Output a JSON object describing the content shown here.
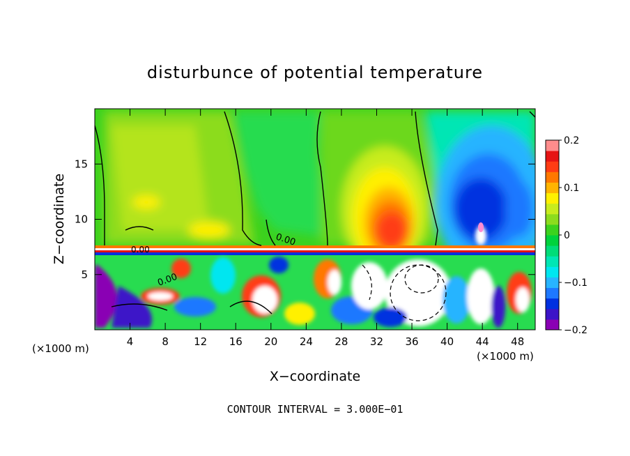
{
  "chart_data": {
    "type": "heatmap",
    "title": "disturbunce of potential temperature",
    "xlabel": "X−coordinate",
    "ylabel": "Z−coordinate",
    "x_unit_left": "(×1000 m)",
    "x_unit_right": "(×1000 m)",
    "xlim": [
      0,
      50
    ],
    "ylim": [
      0,
      20
    ],
    "x_ticks": [
      4,
      8,
      12,
      16,
      20,
      24,
      28,
      32,
      36,
      40,
      44,
      48
    ],
    "x_tick_labels": [
      "4",
      "8",
      "12",
      "16",
      "20",
      "24",
      "28",
      "32",
      "36",
      "40",
      "44",
      "48"
    ],
    "y_ticks": [
      5,
      10,
      15
    ],
    "y_tick_labels": [
      "5",
      "10",
      "15"
    ],
    "colorbar": {
      "range": [
        -0.2,
        0.2
      ],
      "ticks": [
        0.2,
        0.1,
        0,
        -0.1,
        -0.2
      ],
      "tick_labels": [
        "0.2",
        "0.1",
        "0",
        "−0.1",
        "−0.2"
      ],
      "colors": [
        "#8a00b4",
        "#3c14c8",
        "#0030e0",
        "#1e78ff",
        "#28b4ff",
        "#00e6f0",
        "#00e6b4",
        "#00dc78",
        "#00d23c",
        "#3cd21e",
        "#8cdc1e",
        "#c8ec1e",
        "#fff000",
        "#ffb400",
        "#ff7800",
        "#ff3c14",
        "#e61414",
        "#ff8c8c"
      ]
    },
    "contour_labels": [
      "0.00",
      "0.00",
      "0.00"
    ],
    "annotation": "CONTOUR INTERVAL = 3.000E−01"
  }
}
